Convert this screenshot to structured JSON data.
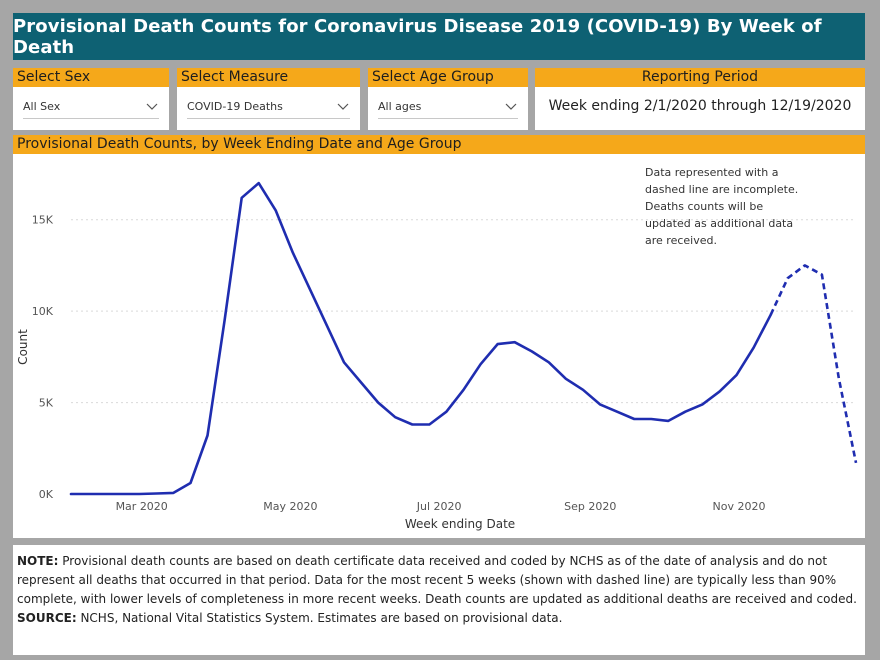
{
  "title": "Provisional Death Counts for Coronavirus Disease 2019 (COVID-19) By Week of Death",
  "filters": {
    "sex": {
      "label": "Select Sex",
      "value": "All Sex"
    },
    "measure": {
      "label": "Select Measure",
      "value": "COVID-19 Deaths"
    },
    "age": {
      "label": "Select Age Group",
      "value": "All ages"
    }
  },
  "reporting_period": {
    "label": "Reporting Period",
    "value": "Week ending 2/1/2020 through 12/19/2020"
  },
  "chart_header": "Provisional Death Counts, by Week Ending Date and Age Group",
  "chart_note": [
    "Data represented with a",
    "dashed line are incomplete.",
    "Deaths counts will be",
    "updated as additional data",
    "are received."
  ],
  "chart_data": {
    "type": "line",
    "xlabel": "Week ending Date",
    "ylabel": "Count",
    "y_ticks": [
      {
        "value": 0,
        "label": "0K"
      },
      {
        "value": 5000,
        "label": "5K"
      },
      {
        "value": 10000,
        "label": "10K"
      },
      {
        "value": 15000,
        "label": "15K"
      }
    ],
    "ylim": [
      0,
      17500
    ],
    "x_ticks": [
      {
        "date": "2020-03-01",
        "label": "Mar 2020"
      },
      {
        "date": "2020-05-01",
        "label": "May 2020"
      },
      {
        "date": "2020-07-01",
        "label": "Jul 2020"
      },
      {
        "date": "2020-09-01",
        "label": "Sep 2020"
      },
      {
        "date": "2020-11-01",
        "label": "Nov 2020"
      }
    ],
    "xlim": [
      "2020-02-01",
      "2020-12-19"
    ],
    "grid": true,
    "line_color": "#1f2db0",
    "complete_through": "2020-11-14",
    "dates": [
      "2020-02-01",
      "2020-02-08",
      "2020-02-15",
      "2020-02-22",
      "2020-02-29",
      "2020-03-07",
      "2020-03-14",
      "2020-03-21",
      "2020-03-28",
      "2020-04-04",
      "2020-04-11",
      "2020-04-18",
      "2020-04-25",
      "2020-05-02",
      "2020-05-09",
      "2020-05-16",
      "2020-05-23",
      "2020-05-30",
      "2020-06-06",
      "2020-06-13",
      "2020-06-20",
      "2020-06-27",
      "2020-07-04",
      "2020-07-11",
      "2020-07-18",
      "2020-07-25",
      "2020-08-01",
      "2020-08-08",
      "2020-08-15",
      "2020-08-22",
      "2020-08-29",
      "2020-09-05",
      "2020-09-12",
      "2020-09-19",
      "2020-09-26",
      "2020-10-03",
      "2020-10-10",
      "2020-10-17",
      "2020-10-24",
      "2020-10-31",
      "2020-11-07",
      "2020-11-14",
      "2020-11-21",
      "2020-11-28",
      "2020-12-05",
      "2020-12-12",
      "2020-12-19"
    ],
    "values": [
      0,
      0,
      0,
      0,
      0,
      30,
      60,
      600,
      3200,
      9500,
      16200,
      17000,
      15500,
      13200,
      11200,
      9200,
      7200,
      6100,
      5000,
      4200,
      3800,
      3800,
      4500,
      5700,
      7100,
      8200,
      8300,
      7800,
      7200,
      6300,
      5700,
      4900,
      4500,
      4100,
      4100,
      4000,
      4500,
      4900,
      5600,
      6500,
      8000,
      9800,
      11800,
      12500,
      12000,
      6300,
      1700
    ]
  },
  "note": {
    "note_label": "NOTE:",
    "note_text": " Provisional death counts are based on death certificate data received and coded by NCHS as of the date of analysis and do not represent all deaths that occurred in that period. Data for the most recent 5 weeks (shown with dashed line) are typically less than 90% complete, with lower levels of completeness in more recent weeks.  Death counts are updated as additional deaths are received and coded.",
    "source_label": "SOURCE:",
    "source_text": " NCHS, National Vital Statistics System. Estimates are based on provisional data."
  },
  "colors": {
    "title_bg": "#0e6173",
    "header_bg": "#f5a81a",
    "frame_bg": "#a6a6a6",
    "line": "#1f2db0"
  }
}
